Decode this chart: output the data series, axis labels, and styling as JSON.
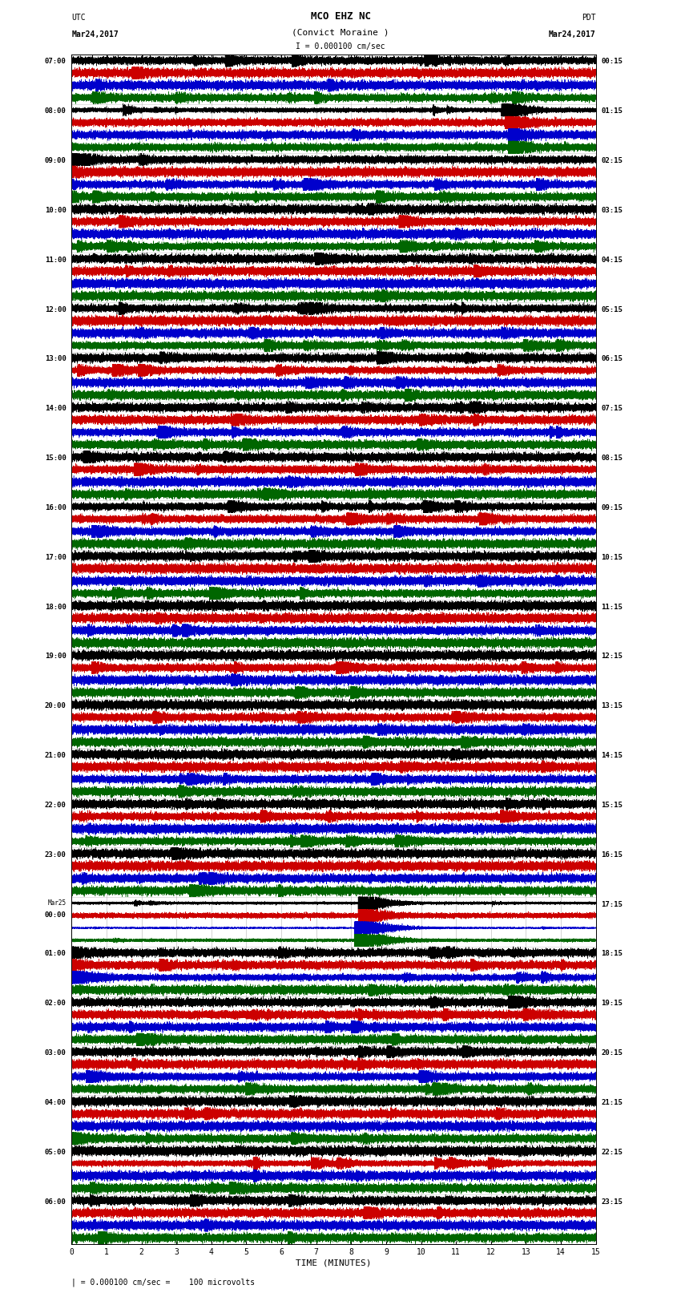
{
  "title_line1": "MCO EHZ NC",
  "title_line2": "(Convict Moraine )",
  "scale_bar": "I = 0.000100 cm/sec",
  "utc_label": "UTC",
  "utc_date": "Mar24,2017",
  "pdt_label": "PDT",
  "pdt_date": "Mar24,2017",
  "xlabel": "TIME (MINUTES)",
  "footnote": "| = 0.000100 cm/sec =    100 microvolts",
  "bg_color": "#ffffff",
  "grid_color": "#aaaaaa",
  "trace_colors": [
    "#000000",
    "#cc0000",
    "#0000cc",
    "#006600"
  ],
  "left_labels_utc": [
    "07:00",
    "08:00",
    "09:00",
    "10:00",
    "11:00",
    "12:00",
    "13:00",
    "14:00",
    "15:00",
    "16:00",
    "17:00",
    "18:00",
    "19:00",
    "20:00",
    "21:00",
    "22:00",
    "23:00",
    "Mar25",
    "01:00",
    "02:00",
    "03:00",
    "04:00",
    "05:00",
    "06:00"
  ],
  "right_labels_pdt": [
    "00:15",
    "01:15",
    "02:15",
    "03:15",
    "04:15",
    "05:15",
    "06:15",
    "07:15",
    "08:15",
    "09:15",
    "10:15",
    "11:15",
    "12:15",
    "13:15",
    "14:15",
    "15:15",
    "16:15",
    "17:15",
    "18:15",
    "19:15",
    "20:15",
    "21:15",
    "22:15",
    "23:15"
  ],
  "num_rows": 24,
  "traces_per_row": 4,
  "minutes": 15,
  "sample_rate": 100
}
